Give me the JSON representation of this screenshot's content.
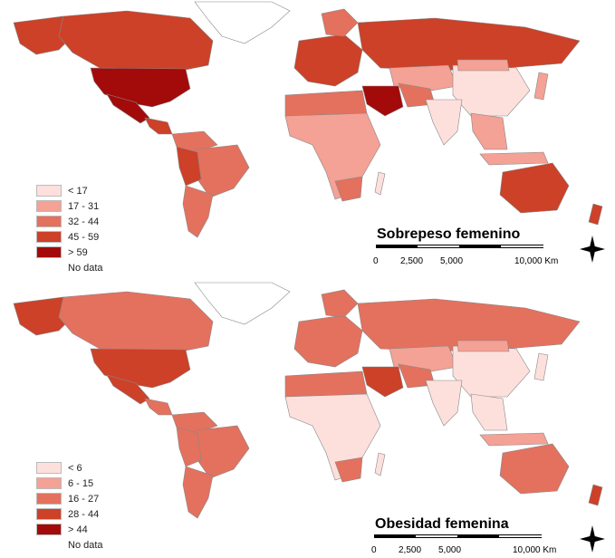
{
  "maps": [
    {
      "title": "Sobrepeso femenino",
      "legend": [
        {
          "label": "< 17",
          "color": "#fde0dc"
        },
        {
          "label": "17 - 31",
          "color": "#f4a196"
        },
        {
          "label": "32 - 44",
          "color": "#e3715e"
        },
        {
          "label": "45 - 59",
          "color": "#cc4128"
        },
        {
          "label": "> 59",
          "color": "#a30a0a"
        },
        {
          "label": "No data",
          "color": "#ffffff"
        }
      ],
      "scale": {
        "labels": [
          "0",
          "2,500",
          "5,000",
          "10,000 Km"
        ]
      }
    },
    {
      "title": "Obesidad femenina",
      "legend": [
        {
          "label": "< 6",
          "color": "#fde0dc"
        },
        {
          "label": "6 - 15",
          "color": "#f4a196"
        },
        {
          "label": "16 - 27",
          "color": "#e3715e"
        },
        {
          "label": "28 - 44",
          "color": "#cc4128"
        },
        {
          "label": "> 44",
          "color": "#a30a0a"
        },
        {
          "label": "No data",
          "color": "#ffffff"
        }
      ],
      "scale": {
        "labels": [
          "0",
          "2,500",
          "5,000",
          "10,000 Km"
        ]
      }
    }
  ],
  "compass_icon": "north-arrow-icon"
}
